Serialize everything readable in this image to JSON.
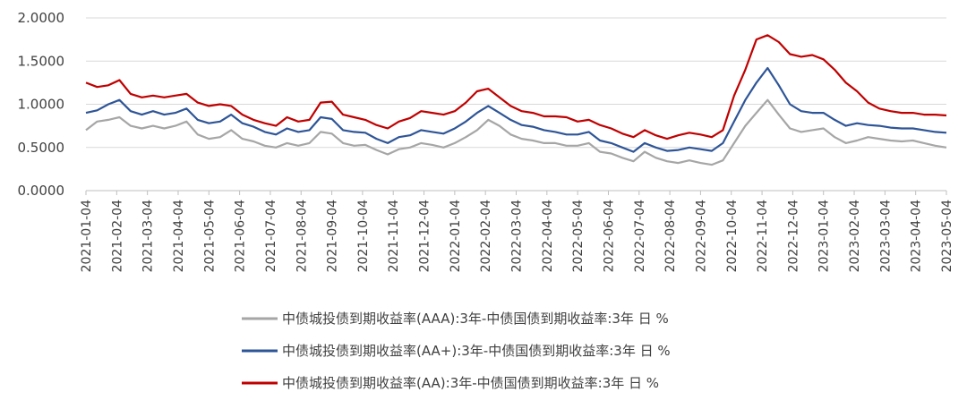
{
  "chart_data": {
    "type": "line",
    "title": "",
    "xlabel": "",
    "ylabel": "",
    "ylim": [
      0,
      2
    ],
    "y_ticks": [
      "0.0000",
      "0.5000",
      "1.0000",
      "1.5000",
      "2.0000"
    ],
    "x_ticks": [
      "2021-01-04",
      "2021-02-04",
      "2021-03-04",
      "2021-04-04",
      "2021-05-04",
      "2021-06-04",
      "2021-07-04",
      "2021-08-04",
      "2021-09-04",
      "2021-10-04",
      "2021-11-04",
      "2021-12-04",
      "2022-01-04",
      "2022-02-04",
      "2022-03-04",
      "2022-04-04",
      "2022-05-04",
      "2022-06-04",
      "2022-07-04",
      "2022-08-04",
      "2022-09-04",
      "2022-10-04",
      "2022-11-04",
      "2022-12-04",
      "2023-01-04",
      "2023-02-04",
      "2023-03-04",
      "2023-04-04",
      "2023-05-04"
    ],
    "grid": "horizontal",
    "legend_position": "bottom",
    "series": [
      {
        "name": "中债城投债到期收益率(AAA):3年-中债国债到期收益率:3年 日 %",
        "color": "#a6a6a6",
        "values": [
          0.7,
          0.8,
          0.82,
          0.85,
          0.75,
          0.72,
          0.75,
          0.72,
          0.75,
          0.8,
          0.65,
          0.6,
          0.62,
          0.7,
          0.6,
          0.57,
          0.52,
          0.5,
          0.55,
          0.52,
          0.55,
          0.68,
          0.66,
          0.55,
          0.52,
          0.53,
          0.47,
          0.42,
          0.48,
          0.5,
          0.55,
          0.53,
          0.5,
          0.55,
          0.62,
          0.7,
          0.82,
          0.75,
          0.65,
          0.6,
          0.58,
          0.55,
          0.55,
          0.52,
          0.52,
          0.55,
          0.45,
          0.43,
          0.38,
          0.34,
          0.45,
          0.38,
          0.34,
          0.32,
          0.35,
          0.32,
          0.3,
          0.35,
          0.55,
          0.75,
          0.9,
          1.05,
          0.88,
          0.72,
          0.68,
          0.7,
          0.72,
          0.62,
          0.55,
          0.58,
          0.62,
          0.6,
          0.58,
          0.57,
          0.58,
          0.55,
          0.52,
          0.5
        ]
      },
      {
        "name": "中债城投债到期收益率(AA+):3年-中债国债到期收益率:3年 日 %",
        "color": "#2e5597",
        "values": [
          0.9,
          0.93,
          1.0,
          1.05,
          0.92,
          0.88,
          0.92,
          0.88,
          0.9,
          0.95,
          0.82,
          0.78,
          0.8,
          0.88,
          0.78,
          0.74,
          0.68,
          0.65,
          0.72,
          0.68,
          0.7,
          0.85,
          0.83,
          0.7,
          0.68,
          0.67,
          0.6,
          0.55,
          0.62,
          0.64,
          0.7,
          0.68,
          0.66,
          0.72,
          0.8,
          0.9,
          0.98,
          0.9,
          0.82,
          0.76,
          0.74,
          0.7,
          0.68,
          0.65,
          0.65,
          0.68,
          0.58,
          0.55,
          0.5,
          0.45,
          0.55,
          0.5,
          0.46,
          0.47,
          0.5,
          0.48,
          0.46,
          0.55,
          0.8,
          1.05,
          1.25,
          1.42,
          1.22,
          1.0,
          0.92,
          0.9,
          0.9,
          0.82,
          0.75,
          0.78,
          0.76,
          0.75,
          0.73,
          0.72,
          0.72,
          0.7,
          0.68,
          0.67
        ]
      },
      {
        "name": "中债城投债到期收益率(AA):3年-中债国债到期收益率:3年 日 %",
        "color": "#c00000",
        "values": [
          1.25,
          1.2,
          1.22,
          1.28,
          1.12,
          1.08,
          1.1,
          1.08,
          1.1,
          1.12,
          1.02,
          0.98,
          1.0,
          0.98,
          0.88,
          0.82,
          0.78,
          0.75,
          0.85,
          0.8,
          0.82,
          1.02,
          1.03,
          0.88,
          0.85,
          0.82,
          0.76,
          0.72,
          0.8,
          0.84,
          0.92,
          0.9,
          0.88,
          0.92,
          1.02,
          1.15,
          1.18,
          1.08,
          0.98,
          0.92,
          0.9,
          0.86,
          0.86,
          0.85,
          0.8,
          0.82,
          0.76,
          0.72,
          0.66,
          0.62,
          0.7,
          0.64,
          0.6,
          0.64,
          0.67,
          0.65,
          0.62,
          0.7,
          1.1,
          1.4,
          1.75,
          1.8,
          1.72,
          1.58,
          1.55,
          1.57,
          1.52,
          1.4,
          1.25,
          1.15,
          1.02,
          0.95,
          0.92,
          0.9,
          0.9,
          0.88,
          0.88,
          0.87
        ]
      }
    ]
  }
}
